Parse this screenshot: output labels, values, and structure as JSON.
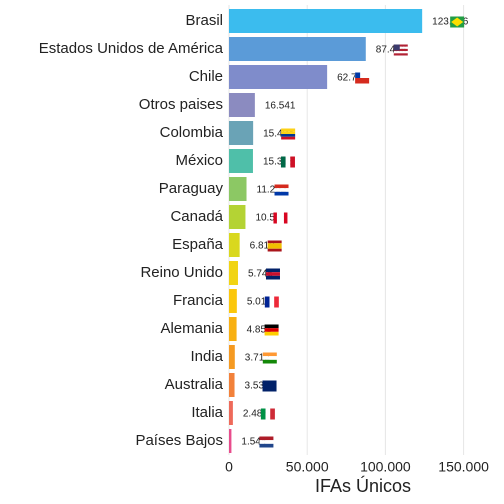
{
  "chart_data": {
    "type": "bar",
    "orientation": "horizontal",
    "x_label": "IFAs Únicos",
    "categories": [
      "Brasil",
      "Estados Unidos de América",
      "Chile",
      "Otros paises",
      "Colombia",
      "México",
      "Paraguay",
      "Canadá",
      "España",
      "Reino Unido",
      "Francia",
      "Alemania",
      "India",
      "Australia",
      "Italia",
      "Países Bajos"
    ],
    "values": [
      123506,
      87456,
      62745,
      16541,
      15434,
      15318,
      11202,
      10518,
      6812,
      5745,
      5012,
      4851,
      3712,
      3534,
      2487,
      1544
    ],
    "value_labels": [
      "123.506",
      "87.456",
      "62.745",
      "16.541",
      "15.434",
      "15.318",
      "11.202",
      "10.518",
      "6.812",
      "5.745",
      "5.012",
      "4.851",
      "3.712",
      "3.534",
      "2.487",
      "1.544"
    ],
    "colors": [
      "#3bbcee",
      "#5b9bd8",
      "#7f8ccb",
      "#8b8bc0",
      "#6aa3b6",
      "#4fbfa9",
      "#8cc864",
      "#b4d334",
      "#d9d81e",
      "#f1d414",
      "#fbc70c",
      "#f8b012",
      "#f59a22",
      "#f2813a",
      "#ee6a5a",
      "#e84c8c"
    ],
    "xlim": [
      0,
      172000
    ],
    "xticks": [
      0,
      {
        "value": 50000,
        "label": "50.000"
      },
      {
        "value": 100000,
        "label": "100.000"
      },
      {
        "value": 150000,
        "label": "150.000"
      }
    ],
    "grid": true
  }
}
